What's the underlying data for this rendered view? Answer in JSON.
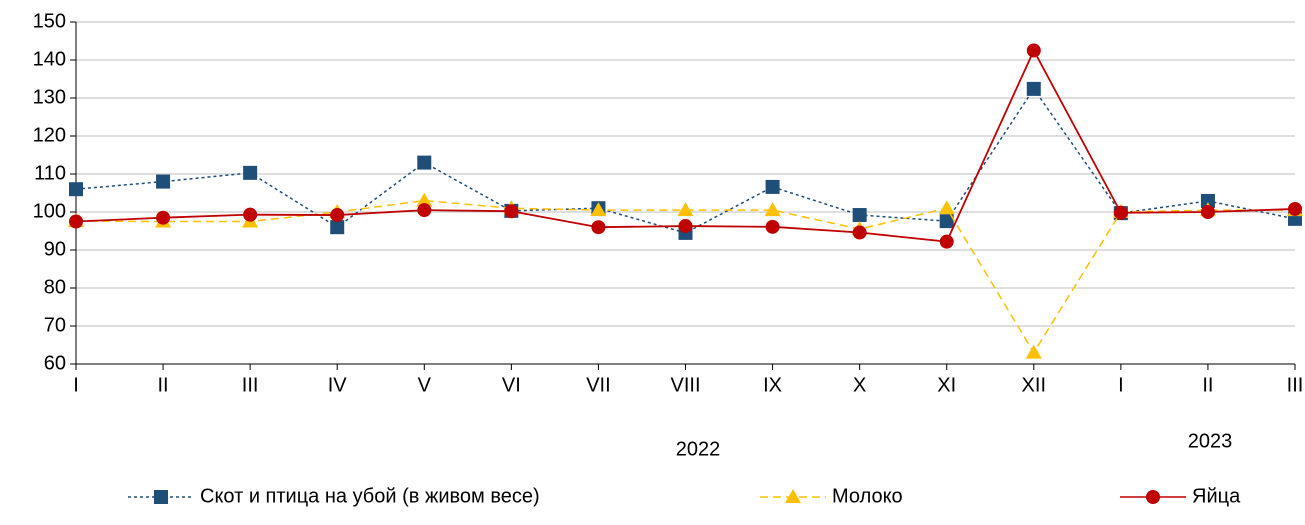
{
  "chart_data": {
    "type": "line",
    "categories": [
      "I",
      "II",
      "III",
      "IV",
      "V",
      "VI",
      "VII",
      "VIII",
      "IX",
      "X",
      "XI",
      "XII",
      "I",
      "II",
      "III"
    ],
    "group_labels": [
      "2022",
      "2023"
    ],
    "ylim": [
      60,
      150
    ],
    "yticks": [
      60,
      70,
      80,
      90,
      100,
      110,
      120,
      130,
      140,
      150
    ],
    "grid": true,
    "legend": "bottom",
    "series": [
      {
        "name": "Скот и птица на убой (в живом весе)",
        "color": "#1f4e79",
        "marker": "square",
        "dash": "3,3",
        "values": [
          106,
          108,
          110.3,
          96,
          113,
          100.3,
          101,
          94.5,
          106.6,
          99.2,
          97.6,
          132.4,
          99.7,
          102.9,
          98.2
        ]
      },
      {
        "name": "Молоко",
        "color": "#ffc000",
        "marker": "triangle",
        "dash": "8,5",
        "values": [
          97.6,
          97.5,
          97.5,
          100,
          103,
          101,
          100.5,
          100.5,
          100.5,
          95.5,
          101,
          63,
          100,
          100.5,
          100.5
        ]
      },
      {
        "name": "Яйца",
        "color": "#c00000",
        "marker": "circle",
        "dash": "",
        "values": [
          97.5,
          98.5,
          99.3,
          99.2,
          100.5,
          100.2,
          96,
          96.3,
          96.1,
          94.6,
          92.2,
          142.5,
          99.8,
          100,
          100.8
        ]
      }
    ]
  }
}
